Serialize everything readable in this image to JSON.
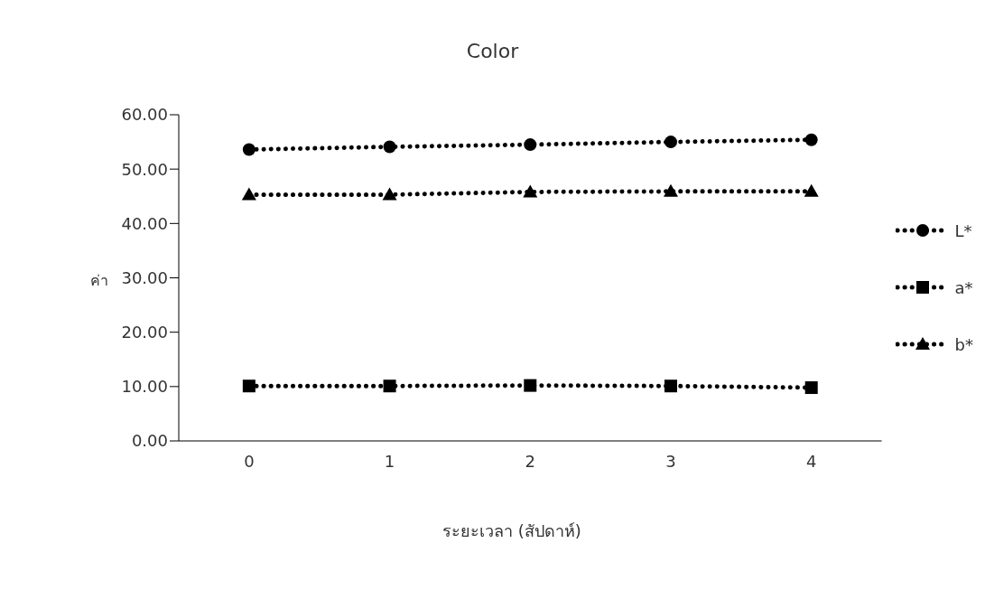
{
  "chart_data": {
    "type": "line",
    "title": "Color",
    "xlabel": "ระยะเวลา (สัปดาห์)",
    "ylabel": "ค่า",
    "categories": [
      "0",
      "1",
      "2",
      "3",
      "4"
    ],
    "series": [
      {
        "name": "L*",
        "color": "#000000",
        "marker": "circle",
        "values": [
          53.6,
          54.1,
          54.5,
          55.0,
          55.4
        ]
      },
      {
        "name": "a*",
        "color": "#000000",
        "marker": "square",
        "values": [
          10.1,
          10.1,
          10.2,
          10.1,
          9.8
        ]
      },
      {
        "name": "b*",
        "color": "#000000",
        "marker": "triangle",
        "values": [
          45.3,
          45.3,
          45.8,
          45.9,
          45.9
        ]
      }
    ],
    "ylim": [
      0,
      60
    ],
    "yticks": [
      {
        "value": 0,
        "label": "0.00"
      },
      {
        "value": 10,
        "label": "10.00"
      },
      {
        "value": 20,
        "label": "20.00"
      },
      {
        "value": 30,
        "label": "30.00"
      },
      {
        "value": 40,
        "label": "40.00"
      },
      {
        "value": 50,
        "label": "50.00"
      },
      {
        "value": 60,
        "label": "60.00"
      }
    ],
    "grid": false,
    "legend": "right",
    "line_style": "dotted"
  }
}
